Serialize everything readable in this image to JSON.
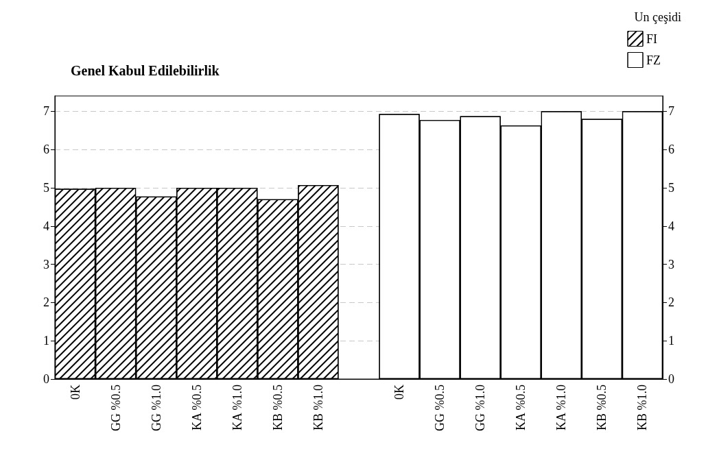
{
  "chart_data": {
    "type": "bar",
    "title": "Genel Kabul Edilebilirlik",
    "legend_title": "Un çeşidi",
    "categories": [
      "0K",
      "GG %0.5",
      "GG %1.0",
      "KA %0.5",
      "KA %1.0",
      "KB %0.5",
      "KB %1.0",
      null,
      "0K",
      "GG %0.5",
      "GG %1.0",
      "KA %0.5",
      "KA %1.0",
      "KB %0.5",
      "KB %1.0"
    ],
    "series": [
      {
        "name": "FI",
        "color": "#ffffff",
        "values": [
          4.97,
          5.0,
          4.77,
          5.0,
          5.0,
          4.7,
          5.07,
          null,
          null,
          null,
          null,
          null,
          null,
          null,
          null
        ]
      },
      {
        "name": "FZ",
        "color": "#ffffff",
        "values": [
          null,
          null,
          null,
          null,
          null,
          null,
          null,
          null,
          6.93,
          6.77,
          6.87,
          6.63,
          7.0,
          6.8,
          7.0
        ]
      }
    ],
    "ylim": [
      0,
      7.4
    ],
    "yticks": [
      0,
      1,
      2,
      3,
      4,
      5,
      6,
      7
    ],
    "y2lim": [
      0,
      7.4
    ],
    "y2ticks": [
      0,
      1,
      2,
      3,
      4,
      5,
      6,
      7
    ],
    "grid": "y",
    "legend": "top right"
  }
}
